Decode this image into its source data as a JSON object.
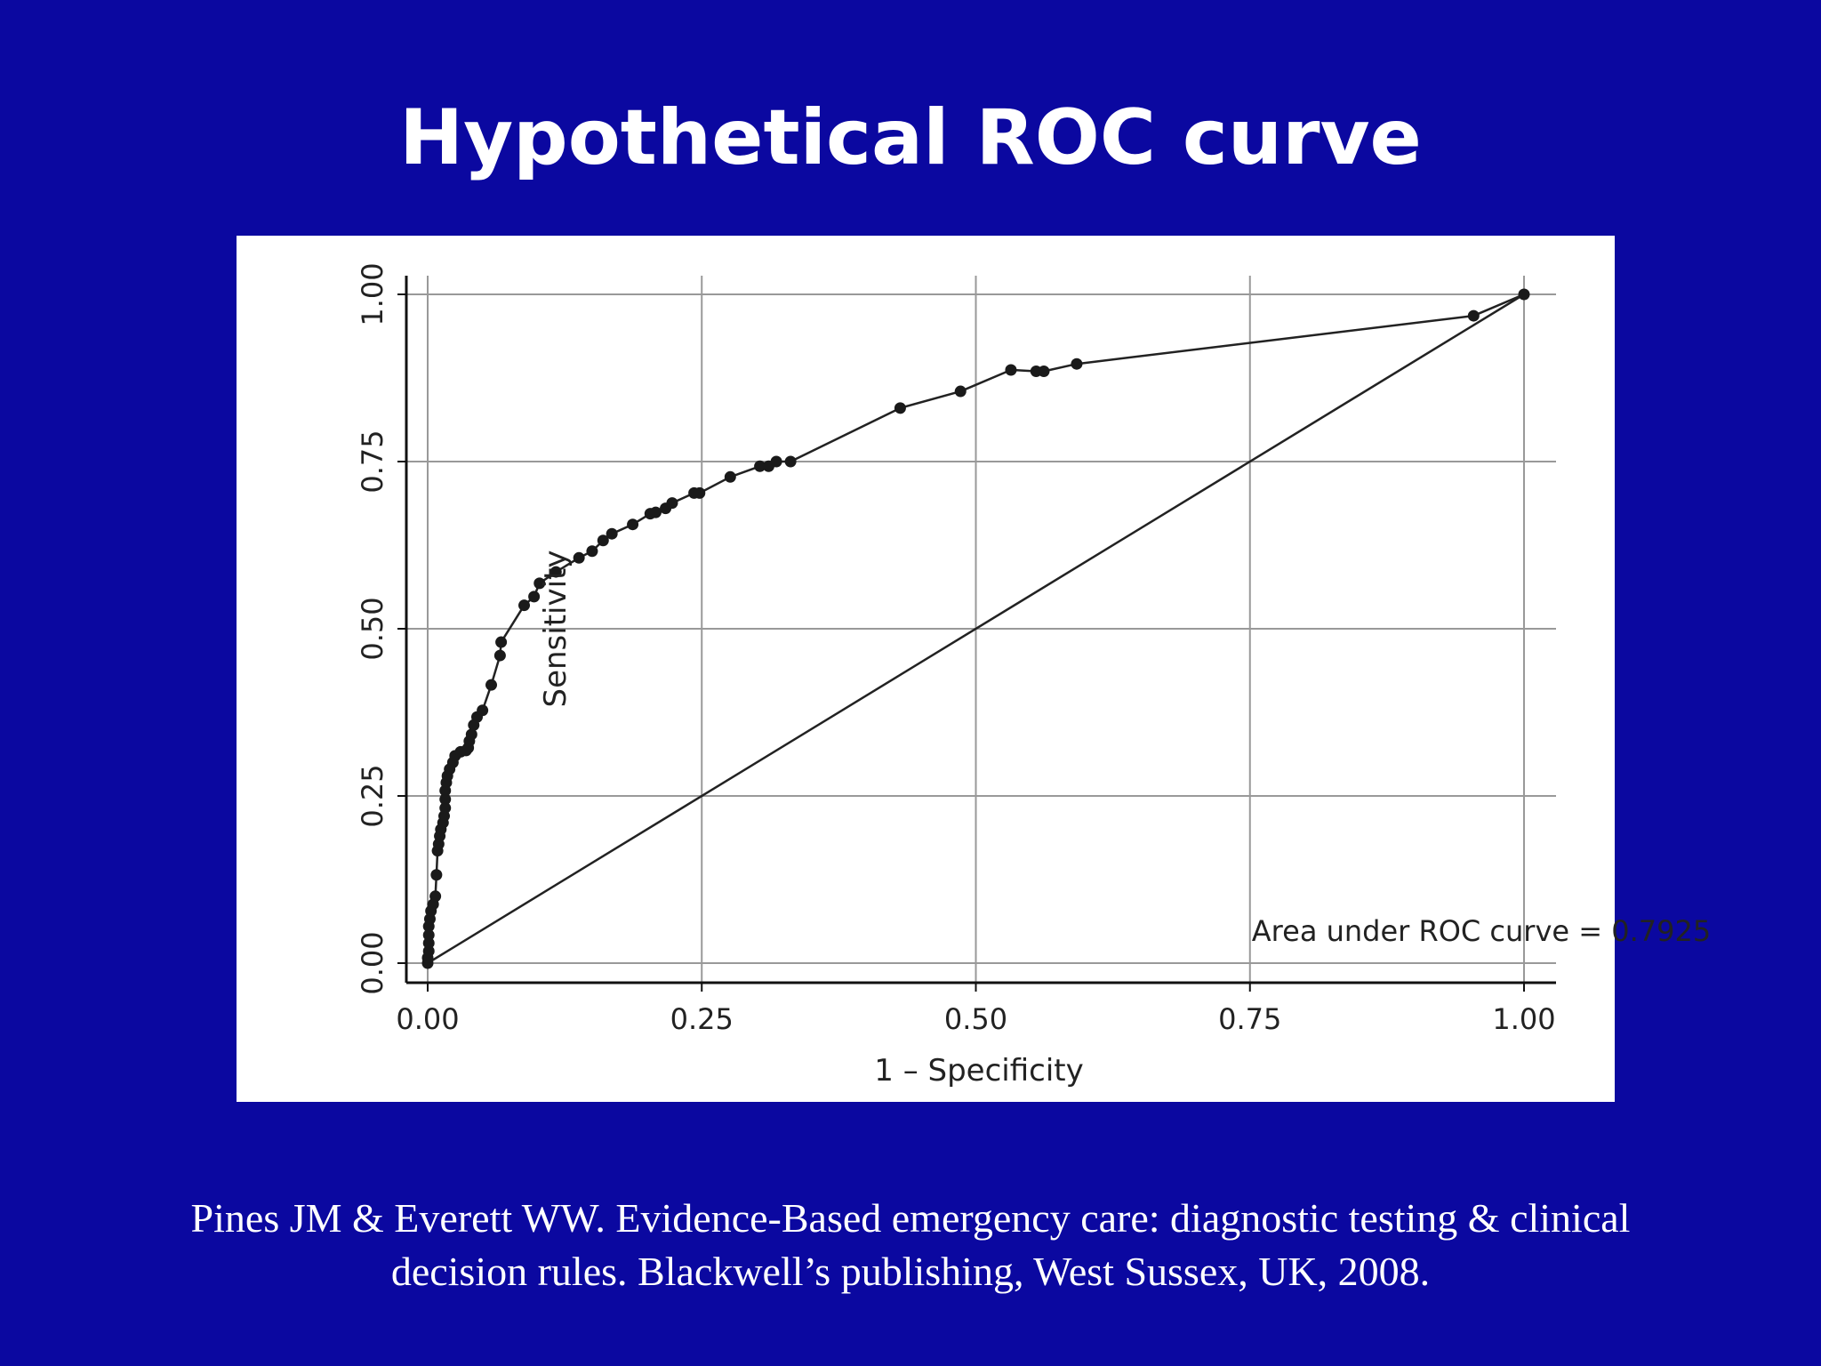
{
  "slide": {
    "title": "Hypothetical ROC curve",
    "citation_lines": [
      "Pines JM & Everett WW. Evidence-Based emergency care: diagnostic testing & clinical",
      "decision rules. Blackwell’s publishing, West Sussex, UK, 2008."
    ],
    "background_color": "#0b08a0"
  },
  "chart_data": {
    "type": "line",
    "title": "",
    "xlabel": "1 – Specificity",
    "ylabel": "Sensitivity",
    "xlim": [
      0,
      1
    ],
    "ylim": [
      0,
      1
    ],
    "x_ticks": [
      0,
      0.25,
      0.5,
      0.75,
      1
    ],
    "y_ticks": [
      0,
      0.25,
      0.5,
      0.75,
      1
    ],
    "x_tick_labels": [
      "0.00",
      "0.25",
      "0.50",
      "0.75",
      "1.00"
    ],
    "y_tick_labels": [
      "0.00",
      "0.25",
      "0.50",
      "0.75",
      "1.00"
    ],
    "grid": true,
    "annotation": "Area under ROC curve = 0.7925",
    "series": [
      {
        "values": [
          [
            0.0,
            0.0
          ],
          [
            0.0,
            0.008
          ],
          [
            0.001,
            0.018
          ],
          [
            0.001,
            0.03
          ],
          [
            0.001,
            0.042
          ],
          [
            0.001,
            0.055
          ],
          [
            0.002,
            0.066
          ],
          [
            0.003,
            0.078
          ],
          [
            0.005,
            0.088
          ],
          [
            0.007,
            0.1
          ],
          [
            0.008,
            0.132
          ],
          [
            0.009,
            0.168
          ],
          [
            0.01,
            0.178
          ],
          [
            0.011,
            0.19
          ],
          [
            0.012,
            0.2
          ],
          [
            0.014,
            0.21
          ],
          [
            0.015,
            0.22
          ],
          [
            0.016,
            0.232
          ],
          [
            0.016,
            0.245
          ],
          [
            0.016,
            0.258
          ],
          [
            0.017,
            0.27
          ],
          [
            0.018,
            0.28
          ],
          [
            0.02,
            0.29
          ],
          [
            0.023,
            0.3
          ],
          [
            0.025,
            0.31
          ],
          [
            0.03,
            0.316
          ],
          [
            0.035,
            0.318
          ],
          [
            0.037,
            0.322
          ],
          [
            0.038,
            0.332
          ],
          [
            0.04,
            0.342
          ],
          [
            0.042,
            0.356
          ],
          [
            0.045,
            0.368
          ],
          [
            0.05,
            0.378
          ],
          [
            0.058,
            0.416
          ],
          [
            0.066,
            0.46
          ],
          [
            0.067,
            0.48
          ],
          [
            0.088,
            0.535
          ],
          [
            0.097,
            0.548
          ],
          [
            0.102,
            0.568
          ],
          [
            0.117,
            0.585
          ],
          [
            0.138,
            0.606
          ],
          [
            0.15,
            0.616
          ],
          [
            0.16,
            0.632
          ],
          [
            0.168,
            0.642
          ],
          [
            0.187,
            0.656
          ],
          [
            0.203,
            0.672
          ],
          [
            0.208,
            0.674
          ],
          [
            0.217,
            0.68
          ],
          [
            0.223,
            0.688
          ],
          [
            0.243,
            0.703
          ],
          [
            0.248,
            0.703
          ],
          [
            0.276,
            0.727
          ],
          [
            0.303,
            0.743
          ],
          [
            0.311,
            0.743
          ],
          [
            0.318,
            0.75
          ],
          [
            0.331,
            0.75
          ],
          [
            0.431,
            0.83
          ],
          [
            0.486,
            0.855
          ],
          [
            0.532,
            0.887
          ],
          [
            0.555,
            0.885
          ],
          [
            0.562,
            0.885
          ],
          [
            0.592,
            0.896
          ],
          [
            0.954,
            0.968
          ],
          [
            1.0,
            1.0
          ]
        ]
      },
      {
        "values": [
          [
            0,
            0
          ],
          [
            1,
            1
          ]
        ]
      }
    ]
  }
}
